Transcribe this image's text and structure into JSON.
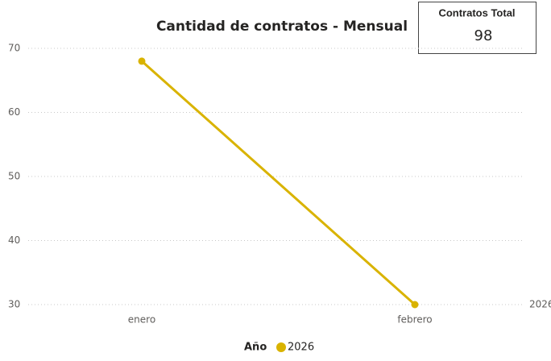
{
  "chart_data": {
    "type": "line",
    "title": "Cantidad de contratos - Mensual",
    "categories": [
      "enero",
      "febrero"
    ],
    "series": [
      {
        "name": "2026",
        "color": "#d9b300",
        "values": [
          68,
          30
        ]
      }
    ],
    "ylim": [
      30,
      70
    ],
    "yticks": [
      30,
      40,
      50,
      60,
      70
    ],
    "grid": true,
    "legend_title": "Año",
    "legend": "bottom"
  },
  "card": {
    "title": "Contratos Total",
    "value": "98"
  }
}
